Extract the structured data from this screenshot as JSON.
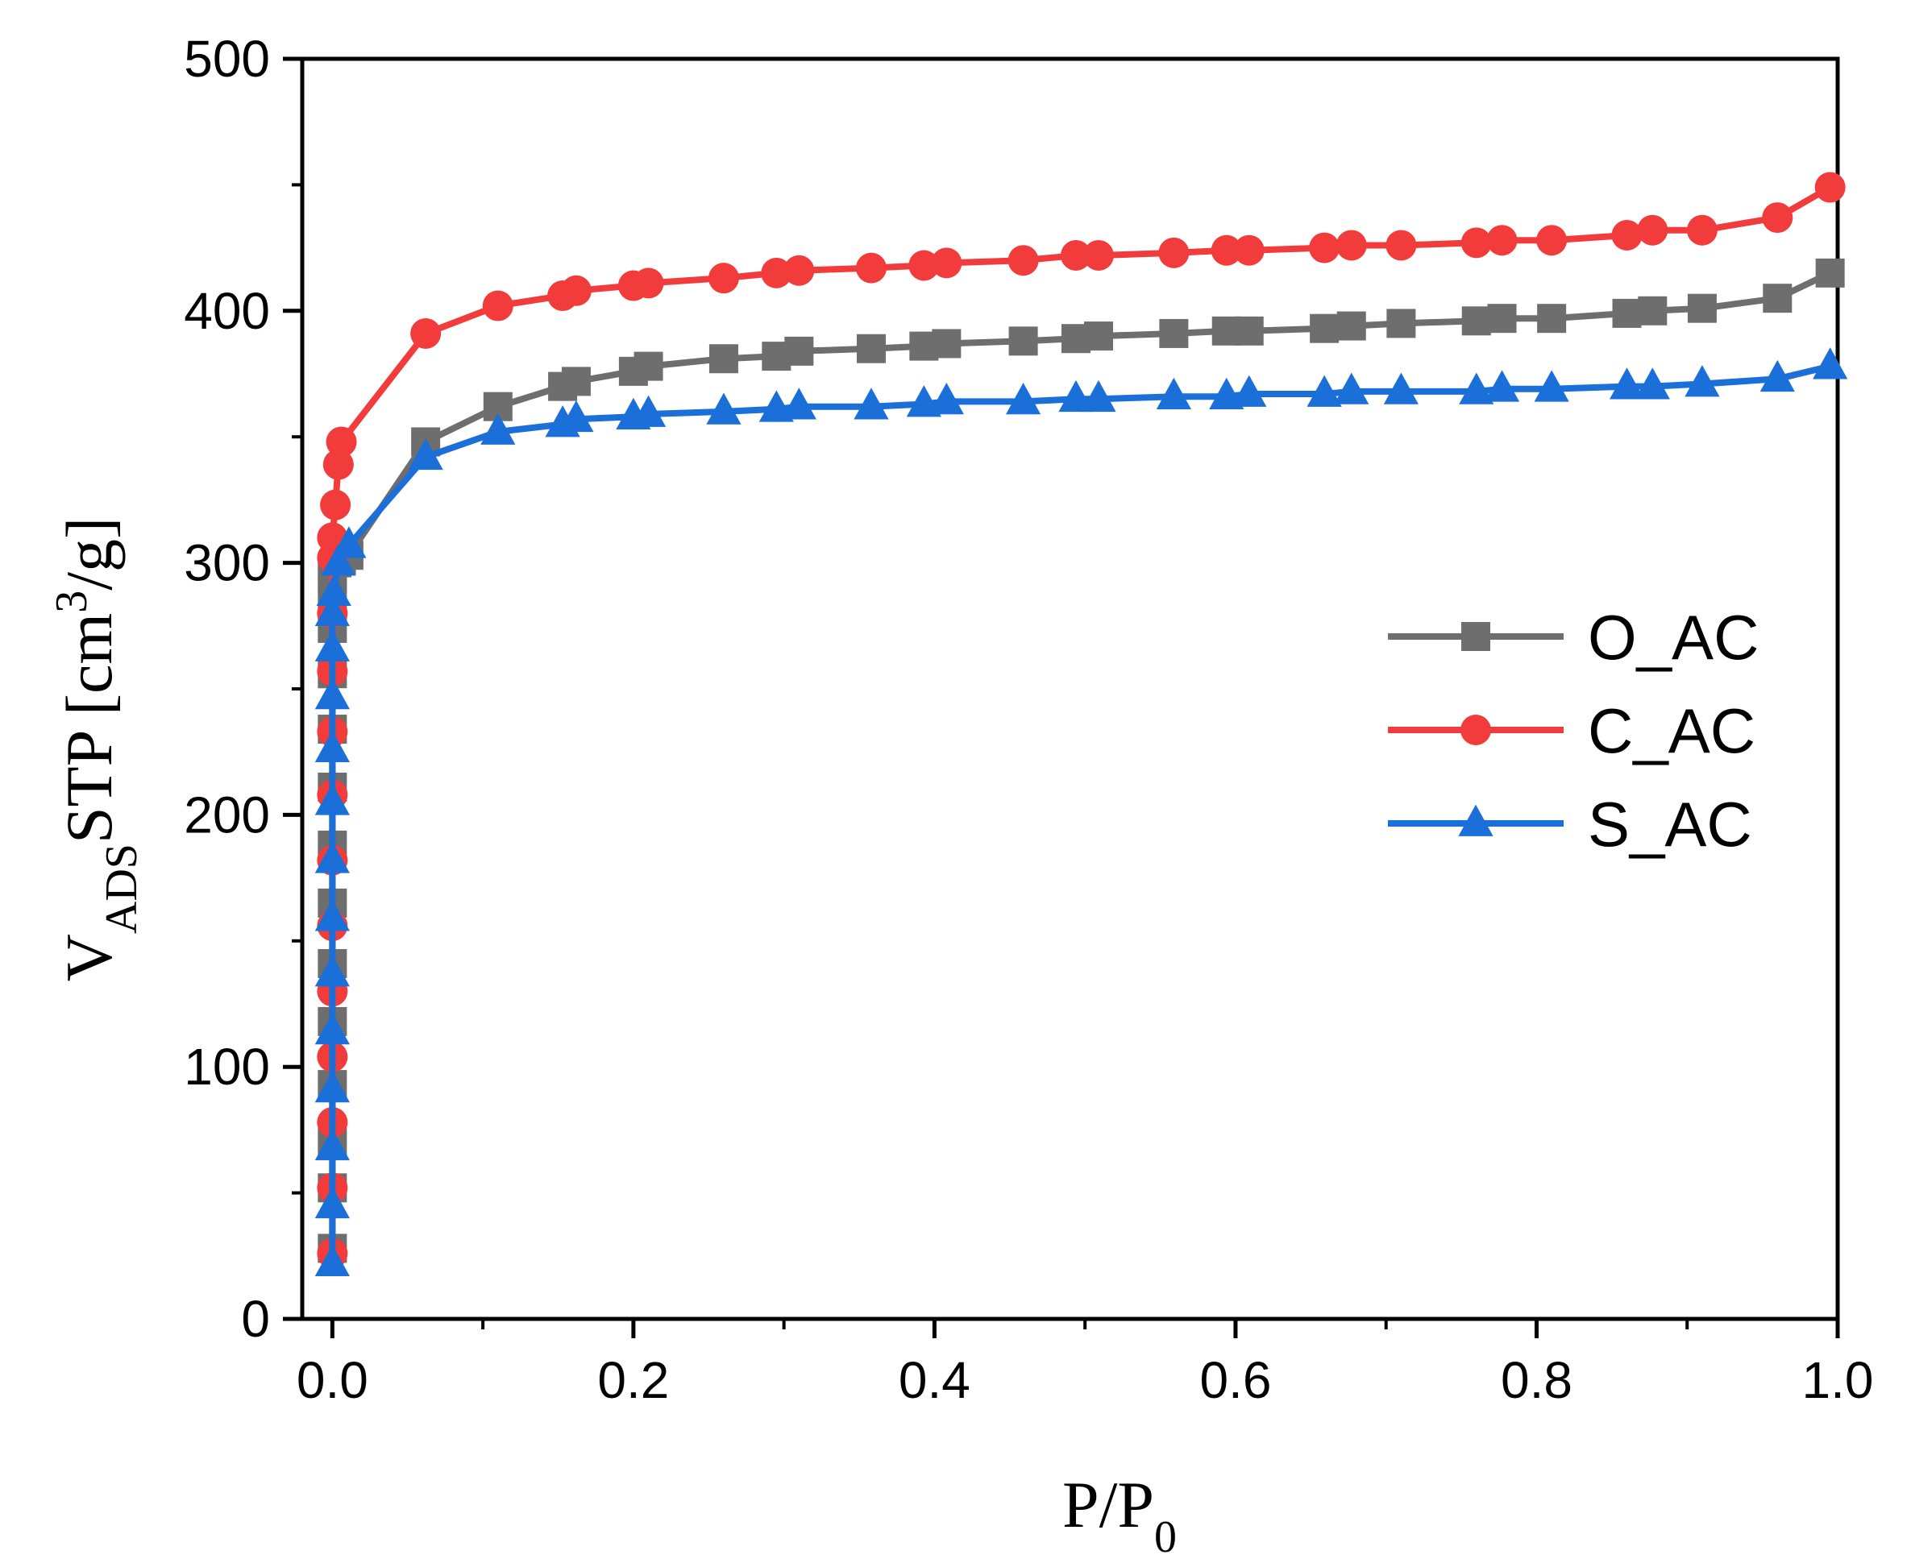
{
  "chart_data": {
    "type": "line",
    "xlabel": "P/P",
    "xlabel_sub": "0",
    "ylabel_main": "V",
    "ylabel_sub": "ADS",
    "ylabel_rest": "STP [cm",
    "ylabel_sup": "3",
    "ylabel_end": "/g]",
    "xlim": [
      -0.02,
      1.0
    ],
    "ylim": [
      0,
      500
    ],
    "xticks": [
      0.0,
      0.2,
      0.4,
      0.6,
      0.8,
      1.0
    ],
    "xtick_labels": [
      "0.0",
      "0.2",
      "0.4",
      "0.6",
      "0.8",
      "1.0"
    ],
    "yticks": [
      0,
      100,
      200,
      300,
      400,
      500
    ],
    "ytick_labels": [
      "0",
      "100",
      "200",
      "300",
      "400",
      "500"
    ],
    "legend_position": "right",
    "series": [
      {
        "name": "O_AC",
        "color": "#6e6e6e",
        "marker": "square",
        "x": [
          0.0,
          0.0,
          0.0,
          0.0,
          0.0,
          0.0,
          0.0,
          0.0,
          0.0,
          0.0,
          0.0,
          0.0,
          0.0,
          0.0,
          0.0,
          0.003,
          0.006,
          0.011,
          0.062,
          0.11,
          0.153,
          0.162,
          0.2,
          0.21,
          0.26,
          0.295,
          0.31,
          0.358,
          0.393,
          0.408,
          0.459,
          0.494,
          0.509,
          0.559,
          0.594,
          0.609,
          0.659,
          0.677,
          0.71,
          0.76,
          0.777,
          0.81,
          0.86,
          0.877,
          0.91,
          0.96,
          0.995
        ],
        "y": [
          28,
          52,
          70,
          93,
          118,
          141,
          165,
          188,
          211,
          234,
          256,
          274,
          286,
          294,
          298,
          300,
          301,
          303,
          348,
          362,
          370,
          372,
          376,
          378,
          381,
          382,
          384,
          385,
          386,
          387,
          388,
          389,
          390,
          391,
          392,
          392,
          393,
          394,
          395,
          396,
          397,
          397,
          399,
          400,
          401,
          405,
          415
        ]
      },
      {
        "name": "C_AC",
        "color": "#f23c3c",
        "marker": "circle",
        "x": [
          0.0,
          0.0,
          0.0,
          0.0,
          0.0,
          0.0,
          0.0,
          0.0,
          0.0,
          0.0,
          0.0,
          0.0,
          0.0,
          0.002,
          0.004,
          0.006,
          0.062,
          0.11,
          0.153,
          0.162,
          0.2,
          0.21,
          0.26,
          0.295,
          0.31,
          0.358,
          0.393,
          0.408,
          0.459,
          0.494,
          0.509,
          0.559,
          0.594,
          0.609,
          0.659,
          0.677,
          0.71,
          0.76,
          0.777,
          0.81,
          0.86,
          0.877,
          0.91,
          0.96,
          0.995
        ],
        "y": [
          26,
          52,
          78,
          104,
          130,
          156,
          182,
          208,
          233,
          257,
          280,
          302,
          310,
          323,
          339,
          348,
          391,
          402,
          406,
          408,
          410,
          411,
          413,
          415,
          416,
          417,
          418,
          419,
          420,
          422,
          422,
          423,
          424,
          424,
          425,
          426,
          426,
          427,
          428,
          428,
          430,
          432,
          432,
          437,
          449
        ]
      },
      {
        "name": "S_AC",
        "color": "#1a6fd8",
        "marker": "triangle",
        "x": [
          0.0,
          0.0,
          0.0,
          0.0,
          0.0,
          0.0,
          0.0,
          0.0,
          0.0,
          0.0,
          0.0,
          0.0,
          0.0,
          0.001,
          0.004,
          0.011,
          0.062,
          0.11,
          0.153,
          0.162,
          0.2,
          0.21,
          0.26,
          0.295,
          0.31,
          0.358,
          0.393,
          0.408,
          0.459,
          0.494,
          0.509,
          0.559,
          0.594,
          0.609,
          0.659,
          0.677,
          0.71,
          0.76,
          0.777,
          0.81,
          0.86,
          0.877,
          0.91,
          0.96,
          0.995
        ],
        "y": [
          22,
          45,
          68,
          91,
          114,
          137,
          159,
          182,
          205,
          226,
          247,
          266,
          280,
          288,
          300,
          307,
          342,
          352,
          355,
          357,
          358,
          359,
          360,
          361,
          362,
          362,
          363,
          364,
          364,
          365,
          365,
          366,
          366,
          367,
          367,
          368,
          368,
          368,
          369,
          369,
          370,
          370,
          371,
          373,
          378
        ]
      }
    ]
  }
}
